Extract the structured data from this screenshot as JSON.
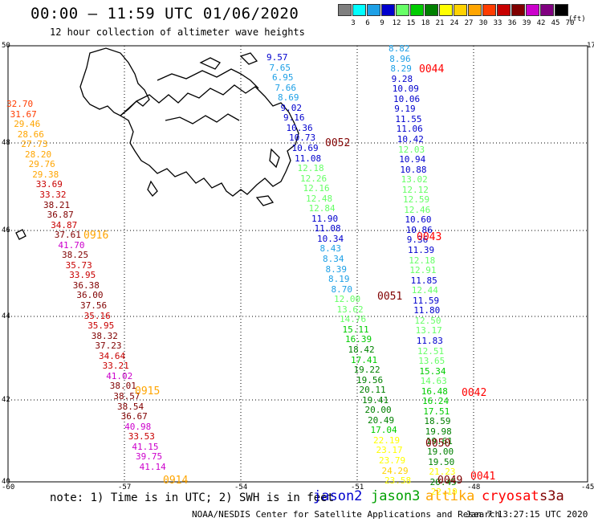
{
  "header": {
    "title": "00:00 – 11:59 UTC 01/06/2020",
    "subtitle": "12 hour collection of altimeter wave heights"
  },
  "colorbar": {
    "unit": "(ft)",
    "bins": [
      {
        "label": "3",
        "color": "#7f7f7f"
      },
      {
        "label": "6",
        "color": "#00ffff"
      },
      {
        "label": "9",
        "color": "#1ea0e6"
      },
      {
        "label": "12",
        "color": "#0000cd"
      },
      {
        "label": "15",
        "color": "#66ff66"
      },
      {
        "label": "18",
        "color": "#00cc00"
      },
      {
        "label": "21",
        "color": "#008000"
      },
      {
        "label": "24",
        "color": "#ffff00"
      },
      {
        "label": "27",
        "color": "#ffd200"
      },
      {
        "label": "30",
        "color": "#ffa500"
      },
      {
        "label": "33",
        "color": "#ff3c00"
      },
      {
        "label": "36",
        "color": "#c80000"
      },
      {
        "label": "39",
        "color": "#800000"
      },
      {
        "label": "42",
        "color": "#cc00cc"
      },
      {
        "label": "45",
        "color": "#800080"
      },
      {
        "label": "70",
        "color": "#000000"
      }
    ]
  },
  "map": {
    "lat_labels": [
      "50",
      "48",
      "46",
      "44",
      "42",
      "40"
    ],
    "lon_labels": [
      "-60",
      "-57",
      "-54",
      "-51",
      "-48",
      "-45"
    ],
    "corner_label": "17",
    "tracks": [
      {
        "name": "track-0914",
        "time": "0914",
        "time_color": "#ffa500",
        "values": [
          "32.70",
          "31.67",
          "29.46",
          "28.66",
          "27.73",
          "28.20",
          "29.76",
          "29.38",
          "33.69",
          "33.32",
          "38.21",
          "36.87",
          "34.87",
          "37.61",
          "41.70",
          "38.25",
          "35.73",
          "33.95",
          "36.38",
          "36.00",
          "37.56",
          "35.16",
          "35.95",
          "38.32",
          "37.23",
          "34.64",
          "33.21",
          "41.02",
          "38.01",
          "38.57",
          "38.54",
          "36.67",
          "40.98",
          "33.53",
          "41.15",
          "39.75",
          "41.14"
        ]
      },
      {
        "name": "track-0052",
        "time": "0052",
        "time_color": "#800000",
        "values": [
          "9.57",
          "7.65",
          "6.95",
          "7.66",
          "8.69",
          "9.02",
          "9.16",
          "10.36",
          "10.73",
          "10.69",
          "11.08",
          "12.18",
          "12.26",
          "12.16",
          "12.48",
          "12.84",
          "11.90",
          "11.08",
          "10.34",
          "8.43",
          "8.34",
          "8.39",
          "8.19",
          "8.70",
          "12.00",
          "13.62",
          "14.76",
          "15.11",
          "16.39",
          "18.42",
          "17.41",
          "19.22",
          "19.56",
          "20.11",
          "19.41",
          "20.00",
          "20.49",
          "17.04",
          "22.19",
          "23.17",
          "23.79",
          "24.29",
          "23.58"
        ]
      },
      {
        "name": "track-0044",
        "time": "0044",
        "time_color": "#ff0000",
        "values": [
          "8.82",
          "8.96",
          "8.29",
          "9.28",
          "10.09",
          "10.06",
          "9.19",
          "11.55",
          "11.06",
          "10.42",
          "12.03",
          "10.94",
          "10.88",
          "13.02",
          "12.12",
          "12.59",
          "12.46",
          "10.60",
          "10.86",
          "9.36",
          "11.39",
          "12.18",
          "12.91",
          "11.85",
          "12.44",
          "11.59",
          "11.80",
          "12.50",
          "13.17",
          "11.83",
          "12.51",
          "13.65",
          "15.34",
          "14.63",
          "16.48",
          "16.24",
          "17.51",
          "18.59",
          "19.98",
          "19.61",
          "19.00",
          "19.50",
          "21.23",
          "20.45",
          "22.19"
        ]
      }
    ],
    "time_labels": [
      {
        "text": "0916",
        "color": "#ffa500"
      },
      {
        "text": "0915",
        "color": "#ffa500"
      },
      {
        "text": "0914",
        "color": "#ffa500"
      },
      {
        "text": "0052",
        "color": "#800000"
      },
      {
        "text": "0051",
        "color": "#800000"
      },
      {
        "text": "0050",
        "color": "#800000"
      },
      {
        "text": "0049",
        "color": "#800000"
      },
      {
        "text": "0044",
        "color": "#ff0000"
      },
      {
        "text": "0043",
        "color": "#ff0000"
      },
      {
        "text": "0042",
        "color": "#ff0000"
      },
      {
        "text": "0041",
        "color": "#ff0000"
      }
    ]
  },
  "legend": {
    "note": "note: 1) Time is in UTC; 2) SWH is in feet",
    "satellites": [
      {
        "name": "jason2",
        "color": "#0000cd"
      },
      {
        "name": "jason3",
        "color": "#00a000"
      },
      {
        "name": "altika",
        "color": "#ffa500"
      },
      {
        "name": "cryosat",
        "color": "#ff0000"
      },
      {
        "name": "s3a",
        "color": "#800000"
      }
    ]
  },
  "footer": {
    "center": "NOAA/NESDIS Center for Satellite Applications and Research",
    "timestamp": "Jan  7 13:27:15 UTC 2020"
  }
}
